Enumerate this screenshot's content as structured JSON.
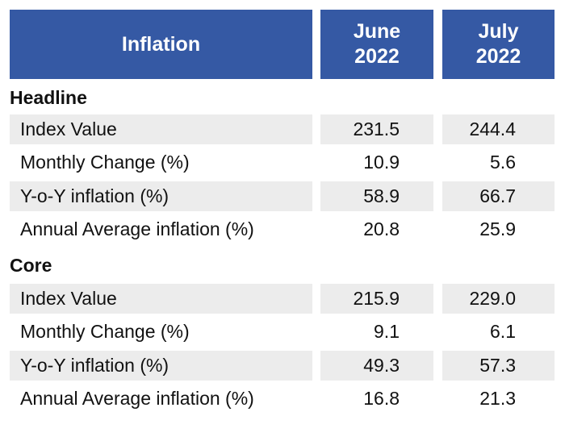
{
  "header": {
    "label": "Inflation",
    "june_line1": "June",
    "june_line2": "2022",
    "july_line1": "July",
    "july_line2": "2022"
  },
  "sections": [
    {
      "title": "Headline",
      "rows": [
        {
          "label": "Index Value",
          "june": "231.5",
          "july": "244.4"
        },
        {
          "label": "Monthly Change (%)",
          "june": "10.9",
          "july": "5.6"
        },
        {
          "label": "Y-o-Y inflation (%)",
          "june": "58.9",
          "july": "66.7"
        },
        {
          "label": "Annual Average inflation (%)",
          "june": "20.8",
          "july": "25.9"
        }
      ]
    },
    {
      "title": "Core",
      "rows": [
        {
          "label": "Index Value",
          "june": "215.9",
          "july": "229.0"
        },
        {
          "label": "Monthly Change (%)",
          "june": "9.1",
          "july": "6.1"
        },
        {
          "label": "Y-o-Y inflation (%)",
          "june": "49.3",
          "july": "57.3"
        },
        {
          "label": "Annual Average inflation (%)",
          "june": "16.8",
          "july": "21.3"
        }
      ]
    }
  ],
  "colors": {
    "header_bg": "#3559a4",
    "header_text": "#ffffff",
    "row_shade": "#ececec"
  }
}
